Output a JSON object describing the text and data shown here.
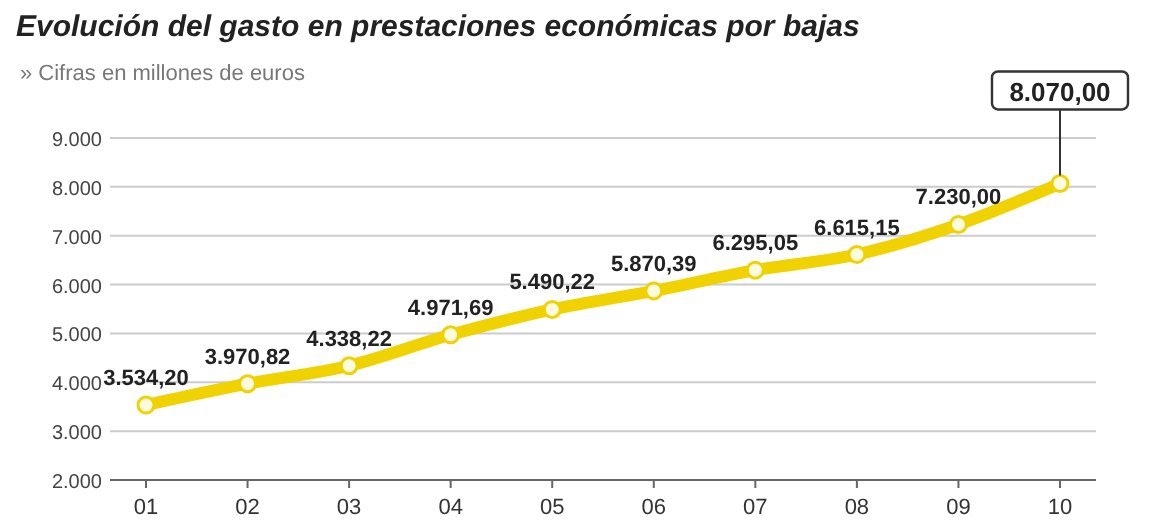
{
  "chart_data": {
    "type": "line",
    "title": "Evolución del gasto en prestaciones económicas por bajas",
    "subtitle": "» Cifras en millones de euros",
    "categories": [
      "01",
      "02",
      "03",
      "04",
      "05",
      "06",
      "07",
      "08",
      "09",
      "10"
    ],
    "series": [
      {
        "color": "#f0d200",
        "values": [
          3534.2,
          3970.82,
          4338.22,
          4971.69,
          5490.22,
          5870.39,
          6295.05,
          6615.15,
          7230.0,
          8070.0
        ],
        "value_labels": [
          "3.534,20",
          "3.970,82",
          "4.338,22",
          "4.971,69",
          "5.490,22",
          "5.870,39",
          "6.295,05",
          "6.615,15",
          "7.230,00",
          "8.070,00"
        ]
      }
    ],
    "ylim": [
      2000,
      9000
    ],
    "yticks": [
      {
        "value": 2000,
        "label": "2.000"
      },
      {
        "value": 3000,
        "label": "3.000"
      },
      {
        "value": 4000,
        "label": "4.000"
      },
      {
        "value": 5000,
        "label": "5.000"
      },
      {
        "value": 6000,
        "label": "6.000"
      },
      {
        "value": 7000,
        "label": "7.000"
      },
      {
        "value": 8000,
        "label": "8.000"
      },
      {
        "value": 9000,
        "label": "9.000"
      }
    ],
    "grid": "y",
    "marker": "circle",
    "line_style": "solid"
  }
}
